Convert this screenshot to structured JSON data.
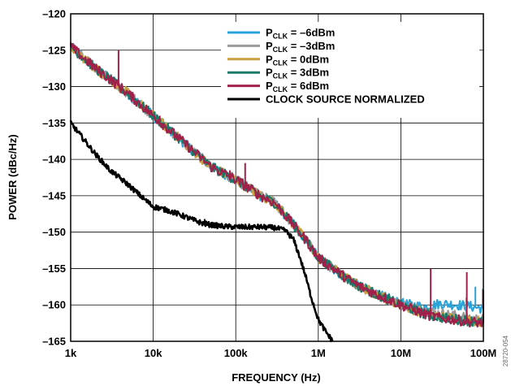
{
  "side_code": "28720-054",
  "chart_data": {
    "type": "line",
    "title": "",
    "xlabel": "FREQUENCY (Hz)",
    "ylabel": "POWER (dBc/Hz)",
    "xscale": "log",
    "xlim": [
      1000,
      100000000
    ],
    "ylim": [
      -165,
      -120
    ],
    "xticks": [
      1000,
      10000,
      100000,
      1000000,
      10000000,
      100000000
    ],
    "xtick_labels": [
      "1k",
      "10k",
      "100k",
      "1M",
      "10M",
      "100M"
    ],
    "yticks": [
      -165,
      -160,
      -155,
      -150,
      -145,
      -140,
      -135,
      -130,
      -125,
      -120
    ],
    "ytick_labels": [
      "–165",
      "–160",
      "–155",
      "–150",
      "–145",
      "–140",
      "–135",
      "–130",
      "–125",
      "–120"
    ],
    "grid": true,
    "legend_position": "top-right",
    "series": [
      {
        "name": "P_CLK = –6dBm",
        "name_main": "P",
        "name_sub": "CLK",
        "name_tail": " = –6dBm",
        "color": "#29a3d9",
        "points": [
          [
            1000,
            -124.5
          ],
          [
            2000,
            -127.5
          ],
          [
            3000,
            -129
          ],
          [
            5000,
            -131
          ],
          [
            10000,
            -134
          ],
          [
            20000,
            -137
          ],
          [
            50000,
            -141
          ],
          [
            100000,
            -142.8
          ],
          [
            200000,
            -145
          ],
          [
            300000,
            -146
          ],
          [
            500000,
            -149
          ],
          [
            700000,
            -151
          ],
          [
            1000000,
            -153.5
          ],
          [
            2000000,
            -156
          ],
          [
            3000000,
            -157.3
          ],
          [
            5000000,
            -158.5
          ],
          [
            10000000,
            -159.8
          ],
          [
            20000000,
            -160.3
          ],
          [
            30000000,
            -159.8
          ],
          [
            50000000,
            -160
          ],
          [
            70000000,
            -160.2
          ],
          [
            100000000,
            -160.5
          ]
        ],
        "spurs": [
          [
            80000000,
            -157.5
          ],
          [
            98000000,
            -157.8
          ]
        ]
      },
      {
        "name": "P_CLK = –3dBm",
        "name_main": "P",
        "name_sub": "CLK",
        "name_tail": " = –3dBm",
        "color": "#9a9a9a",
        "points": [
          [
            1000,
            -124.5
          ],
          [
            2000,
            -127.5
          ],
          [
            3000,
            -129
          ],
          [
            5000,
            -131
          ],
          [
            10000,
            -134
          ],
          [
            20000,
            -137
          ],
          [
            50000,
            -141
          ],
          [
            100000,
            -142.8
          ],
          [
            200000,
            -145
          ],
          [
            300000,
            -146
          ],
          [
            500000,
            -149
          ],
          [
            700000,
            -151
          ],
          [
            1000000,
            -153.5
          ],
          [
            2000000,
            -156
          ],
          [
            3000000,
            -157.3
          ],
          [
            5000000,
            -158.5
          ],
          [
            10000000,
            -159.9
          ],
          [
            20000000,
            -160.8
          ],
          [
            30000000,
            -161.2
          ],
          [
            50000000,
            -161.5
          ],
          [
            70000000,
            -161.8
          ],
          [
            100000000,
            -162
          ]
        ],
        "spurs": [
          [
            62000000,
            -159
          ]
        ]
      },
      {
        "name": "P_CLK = 0dBm",
        "name_main": "P",
        "name_sub": "CLK",
        "name_tail": " = 0dBm",
        "color": "#c8a040",
        "points": [
          [
            1000,
            -124.5
          ],
          [
            2000,
            -127.5
          ],
          [
            3000,
            -129
          ],
          [
            5000,
            -131
          ],
          [
            10000,
            -134
          ],
          [
            20000,
            -137
          ],
          [
            50000,
            -141
          ],
          [
            100000,
            -142.8
          ],
          [
            200000,
            -145
          ],
          [
            300000,
            -146
          ],
          [
            500000,
            -149
          ],
          [
            700000,
            -151
          ],
          [
            1000000,
            -153.5
          ],
          [
            2000000,
            -156
          ],
          [
            3000000,
            -157.3
          ],
          [
            5000000,
            -158.5
          ],
          [
            10000000,
            -160
          ],
          [
            20000000,
            -161.2
          ],
          [
            30000000,
            -161.6
          ],
          [
            50000000,
            -161.9
          ],
          [
            70000000,
            -162.1
          ],
          [
            100000000,
            -162.3
          ]
        ],
        "spurs": []
      },
      {
        "name": "P_CLK = 3dBm",
        "name_main": "P",
        "name_sub": "CLK",
        "name_tail": " = 3dBm",
        "color": "#1a7a6a",
        "points": [
          [
            1000,
            -124.5
          ],
          [
            2000,
            -127.5
          ],
          [
            3000,
            -129
          ],
          [
            5000,
            -131
          ],
          [
            10000,
            -134
          ],
          [
            20000,
            -137
          ],
          [
            50000,
            -141
          ],
          [
            100000,
            -142.8
          ],
          [
            200000,
            -145
          ],
          [
            300000,
            -146
          ],
          [
            500000,
            -149
          ],
          [
            700000,
            -151
          ],
          [
            1000000,
            -153.5
          ],
          [
            2000000,
            -156
          ],
          [
            3000000,
            -157.3
          ],
          [
            5000000,
            -158.5
          ],
          [
            10000000,
            -160
          ],
          [
            20000000,
            -161.3
          ],
          [
            30000000,
            -161.7
          ],
          [
            50000000,
            -162
          ],
          [
            70000000,
            -162.2
          ],
          [
            100000000,
            -162.4
          ]
        ],
        "spurs": []
      },
      {
        "name": "P_CLK = 6dBm",
        "name_main": "P",
        "name_sub": "CLK",
        "name_tail": " = 6dBm",
        "color": "#a0204a",
        "points": [
          [
            1000,
            -124.5
          ],
          [
            2000,
            -127.5
          ],
          [
            3000,
            -129
          ],
          [
            5000,
            -131
          ],
          [
            10000,
            -134
          ],
          [
            20000,
            -137
          ],
          [
            50000,
            -141
          ],
          [
            100000,
            -142.8
          ],
          [
            200000,
            -145
          ],
          [
            300000,
            -146
          ],
          [
            500000,
            -149
          ],
          [
            700000,
            -151
          ],
          [
            1000000,
            -153.5
          ],
          [
            2000000,
            -156
          ],
          [
            3000000,
            -157.3
          ],
          [
            5000000,
            -158.5
          ],
          [
            10000000,
            -160
          ],
          [
            20000000,
            -161.3
          ],
          [
            30000000,
            -161.8
          ],
          [
            50000000,
            -162.1
          ],
          [
            70000000,
            -162.3
          ],
          [
            100000000,
            -162.5
          ]
        ],
        "spurs": [
          [
            3800,
            -125
          ],
          [
            12000,
            -134
          ],
          [
            85000,
            -141.5
          ],
          [
            130000,
            -140.5
          ],
          [
            23000000,
            -155
          ],
          [
            63000000,
            -155.5
          ],
          [
            100000000,
            -158
          ]
        ]
      },
      {
        "name": "CLOCK SOURCE NORMALIZED",
        "name_main": "CLOCK SOURCE NORMALIZED",
        "name_sub": "",
        "name_tail": "",
        "color": "#000000",
        "points": [
          [
            1000,
            -135
          ],
          [
            1500,
            -137.5
          ],
          [
            2000,
            -139.3
          ],
          [
            3000,
            -141.5
          ],
          [
            5000,
            -143.5
          ],
          [
            7000,
            -145
          ],
          [
            10000,
            -146.5
          ],
          [
            15000,
            -147
          ],
          [
            20000,
            -147.5
          ],
          [
            30000,
            -148.3
          ],
          [
            40000,
            -148.8
          ],
          [
            50000,
            -149
          ],
          [
            70000,
            -149.2
          ],
          [
            100000,
            -149.3
          ],
          [
            200000,
            -149.3
          ],
          [
            300000,
            -149.4
          ],
          [
            400000,
            -149.8
          ],
          [
            500000,
            -151
          ],
          [
            600000,
            -153.5
          ],
          [
            700000,
            -156
          ],
          [
            800000,
            -158.5
          ],
          [
            1000000,
            -162
          ],
          [
            1200000,
            -163.5
          ],
          [
            1500000,
            -165
          ]
        ],
        "spurs": [
          [
            42000,
            -148.2
          ]
        ]
      }
    ]
  }
}
